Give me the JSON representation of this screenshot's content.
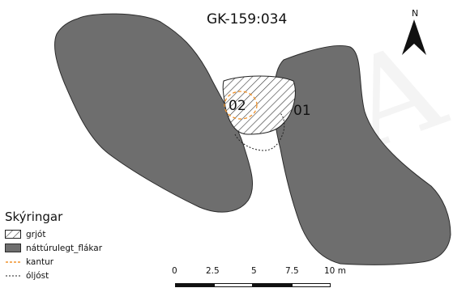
{
  "map": {
    "title": "GK-159:034",
    "north_label": "N",
    "labels": {
      "site_01": "01",
      "site_02": "02"
    },
    "colors": {
      "flakar_fill": "#6e6e6e",
      "flakar_stroke": "#2b2b2b",
      "hatch": "#333333",
      "kantur": "#f0922a",
      "oliost": "#222222"
    }
  },
  "legend": {
    "title": "Skýringar",
    "items": [
      {
        "label": "grjót",
        "symbol": "hatch-icon"
      },
      {
        "label": "náttúrulegt_flákar",
        "symbol": "gray-fill-icon"
      },
      {
        "label": "kantur",
        "symbol": "orange-dashed-line-icon"
      },
      {
        "label": "óljóst",
        "symbol": "black-dotted-line-icon"
      }
    ]
  },
  "scale_bar": {
    "ticks": [
      "0",
      "2.5",
      "5",
      "7.5",
      "10 m"
    ]
  }
}
